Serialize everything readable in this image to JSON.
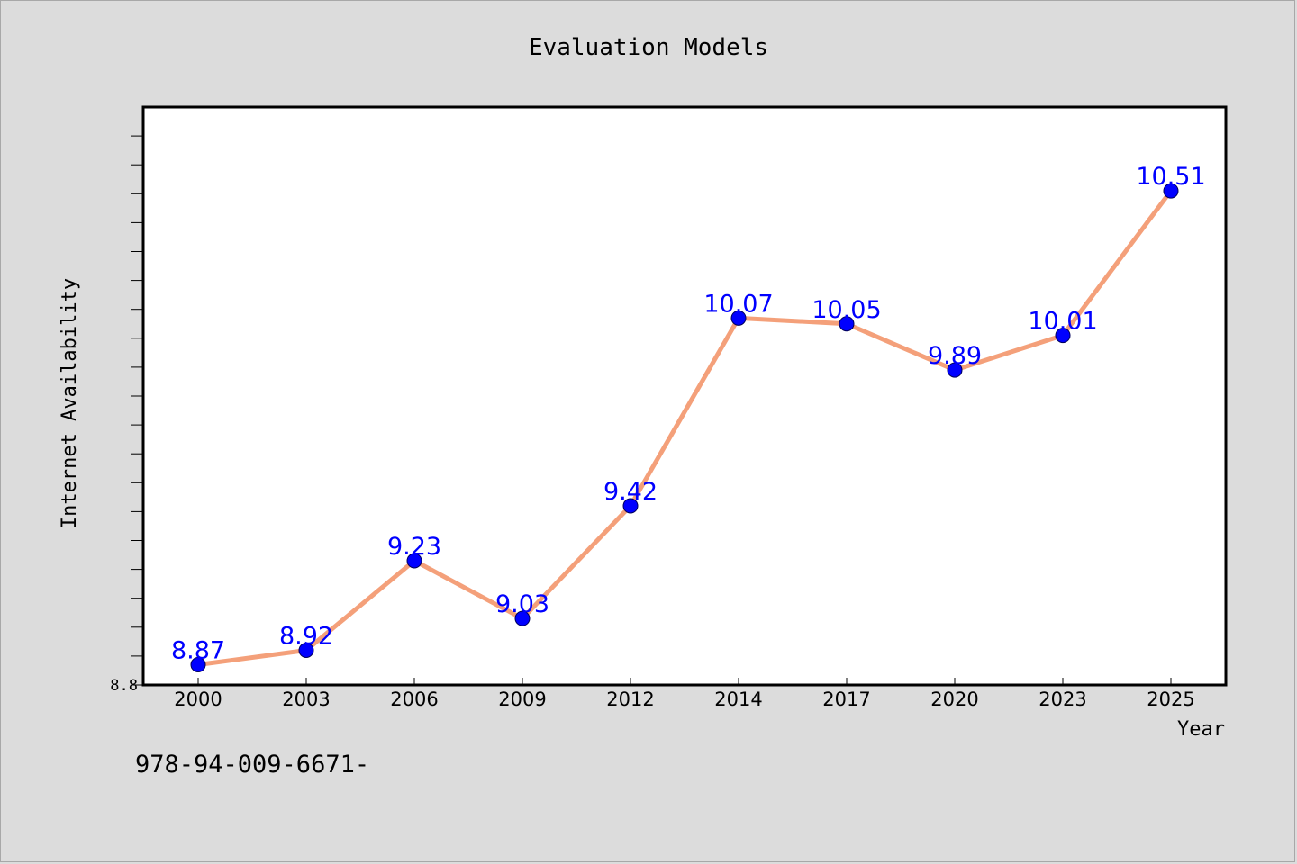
{
  "chart_data": {
    "type": "line",
    "title": "Evaluation Models",
    "xlabel": "Year",
    "ylabel": "Internet Availability",
    "categories": [
      "2000",
      "2003",
      "2006",
      "2009",
      "2012",
      "2014",
      "2017",
      "2020",
      "2023",
      "2025"
    ],
    "series": [
      {
        "values": [
          8.87,
          8.92,
          9.23,
          9.03,
          9.42,
          10.07,
          10.05,
          9.89,
          10.01,
          10.51
        ],
        "labels": [
          "8.87",
          "8.92",
          "9.23",
          "9.03",
          "9.42",
          "10.07",
          "10.05",
          "9.89",
          "10.01",
          "10.51"
        ],
        "line_color": "#f4a07a",
        "marker_color": "#0000ff"
      }
    ],
    "ylim": [
      8.8,
      10.8
    ],
    "y_tick_labels": [
      "8.8"
    ],
    "grid": false,
    "legend": "none",
    "plot_background": "#ffffff",
    "page_background": "#dcdcdc"
  },
  "footer": {
    "text": "978-94-009-6671-"
  }
}
